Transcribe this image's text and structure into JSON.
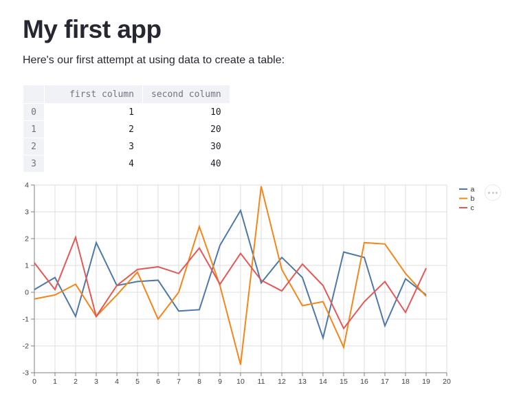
{
  "page": {
    "title": "My first app",
    "intro": "Here's our first attempt at using data to create a table:"
  },
  "table": {
    "columns": [
      "first column",
      "second column"
    ],
    "index": [
      "0",
      "1",
      "2",
      "3"
    ],
    "rows": [
      [
        "1",
        "10"
      ],
      [
        "2",
        "20"
      ],
      [
        "3",
        "30"
      ],
      [
        "4",
        "40"
      ]
    ]
  },
  "chart_data": {
    "type": "line",
    "title": "",
    "xlabel": "",
    "ylabel": "",
    "x": [
      0,
      1,
      2,
      3,
      4,
      5,
      6,
      7,
      8,
      9,
      10,
      11,
      12,
      13,
      14,
      15,
      16,
      17,
      18,
      19
    ],
    "series": [
      {
        "name": "a",
        "color": "#4c78a8",
        "values": [
          0.1,
          0.55,
          -0.9,
          1.85,
          0.25,
          0.4,
          0.45,
          -0.7,
          -0.65,
          1.75,
          3.05,
          0.35,
          1.3,
          0.55,
          -1.7,
          1.5,
          1.3,
          -1.25,
          0.5,
          -0.1
        ]
      },
      {
        "name": "b",
        "color": "#f58518",
        "values": [
          -0.25,
          -0.1,
          0.3,
          -0.9,
          -0.1,
          0.75,
          -1.0,
          0.0,
          2.45,
          0.25,
          -2.7,
          3.95,
          0.85,
          -0.5,
          -0.35,
          -2.05,
          1.85,
          1.8,
          0.7,
          -0.15
        ]
      },
      {
        "name": "c",
        "color": "#e45756",
        "values": [
          1.1,
          0.1,
          2.05,
          -0.9,
          0.25,
          0.85,
          0.95,
          0.7,
          1.65,
          0.3,
          1.45,
          0.45,
          0.05,
          1.05,
          0.25,
          -1.35,
          -0.35,
          0.4,
          -0.75,
          0.9
        ]
      }
    ],
    "xlim": [
      0,
      20
    ],
    "ylim": [
      -3,
      4
    ],
    "x_ticks": [
      0,
      1,
      2,
      3,
      4,
      5,
      6,
      7,
      8,
      9,
      10,
      11,
      12,
      13,
      14,
      15,
      16,
      17,
      18,
      19,
      20
    ],
    "y_ticks": [
      -3,
      -2,
      -1,
      0,
      1,
      2,
      3,
      4
    ],
    "grid": true,
    "legend_position": "right",
    "colors": {
      "grid": "#dddddd",
      "axis_domain": "#7f7f7f",
      "tick_label": "#3d3d3d",
      "legend_label": "#303030"
    }
  },
  "chart_menu": {
    "icon": "ellipsis-icon"
  }
}
